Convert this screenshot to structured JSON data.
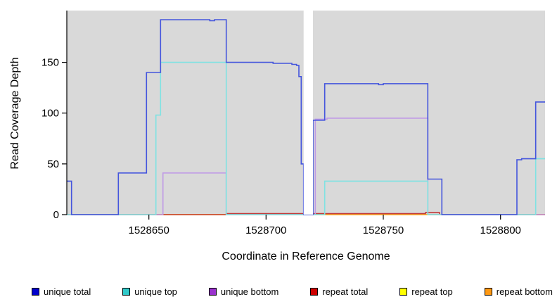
{
  "chart_data": {
    "type": "line",
    "step": true,
    "title": "",
    "xlabel": "Coordinate in Reference Genome",
    "ylabel": "Read Coverage Depth",
    "xlim": [
      1528615,
      1528819
    ],
    "ylim": [
      0,
      201
    ],
    "x_ticks": [
      1528650,
      1528700,
      1528750,
      1528800
    ],
    "y_ticks": [
      0,
      50,
      100,
      150
    ],
    "panel_bg": "#d9d9d9",
    "grid": false,
    "gap_region": [
      1528716,
      1528720
    ],
    "legend_position": "bottom",
    "draw_order": [
      "repeat top",
      "repeat bottom",
      "repeat total",
      "unique bottom",
      "unique top",
      "unique total"
    ],
    "series": [
      {
        "name": "unique total",
        "color": "#4455dd",
        "points": [
          [
            1528615,
            33
          ],
          [
            1528617,
            0
          ],
          [
            1528637,
            41
          ],
          [
            1528649,
            140
          ],
          [
            1528655,
            192
          ],
          [
            1528676,
            191
          ],
          [
            1528678,
            192
          ],
          [
            1528683,
            150
          ],
          [
            1528703,
            149
          ],
          [
            1528711,
            148
          ],
          [
            1528713,
            147
          ],
          [
            1528714,
            136
          ],
          [
            1528715,
            50
          ],
          [
            1528716,
            0
          ],
          [
            1528720,
            93
          ],
          [
            1528725,
            129
          ],
          [
            1528748,
            128
          ],
          [
            1528750,
            129
          ],
          [
            1528768,
            129
          ],
          [
            1528769,
            35
          ],
          [
            1528775,
            0
          ],
          [
            1528807,
            54
          ],
          [
            1528809,
            55
          ],
          [
            1528815,
            111
          ],
          [
            1528819,
            111
          ]
        ]
      },
      {
        "name": "unique top",
        "color": "#7fe2e2",
        "points": [
          [
            1528615,
            0
          ],
          [
            1528653,
            98
          ],
          [
            1528655,
            150
          ],
          [
            1528683,
            0
          ],
          [
            1528725,
            33
          ],
          [
            1528769,
            0
          ],
          [
            1528815,
            55
          ],
          [
            1528819,
            55
          ]
        ]
      },
      {
        "name": "unique bottom",
        "color": "#c09ae6",
        "points": [
          [
            1528615,
            0
          ],
          [
            1528656,
            41
          ],
          [
            1528683,
            0
          ],
          [
            1528721,
            94
          ],
          [
            1528726,
            95
          ],
          [
            1528769,
            0
          ],
          [
            1528819,
            0
          ]
        ]
      },
      {
        "name": "repeat total",
        "color": "#c23b3b",
        "points": [
          [
            1528615,
            0
          ],
          [
            1528683,
            1
          ],
          [
            1528716,
            0
          ],
          [
            1528720,
            1
          ],
          [
            1528768,
            2
          ],
          [
            1528774,
            0
          ],
          [
            1528819,
            0
          ]
        ]
      },
      {
        "name": "repeat top",
        "color": "#f5f533",
        "points": [
          [
            1528615,
            0
          ],
          [
            1528819,
            0
          ]
        ]
      },
      {
        "name": "repeat bottom",
        "color": "#ffa51e",
        "points": [
          [
            1528615,
            0
          ],
          [
            1528819,
            0
          ]
        ]
      }
    ],
    "legend": [
      {
        "label": "unique total",
        "color": "#0000cd"
      },
      {
        "label": "unique top",
        "color": "#30c9c9"
      },
      {
        "label": "unique bottom",
        "color": "#9a32cd"
      },
      {
        "label": "repeat total",
        "color": "#cd0000"
      },
      {
        "label": "repeat top",
        "color": "#ffff00"
      },
      {
        "label": "repeat bottom",
        "color": "#ff9912"
      }
    ]
  }
}
